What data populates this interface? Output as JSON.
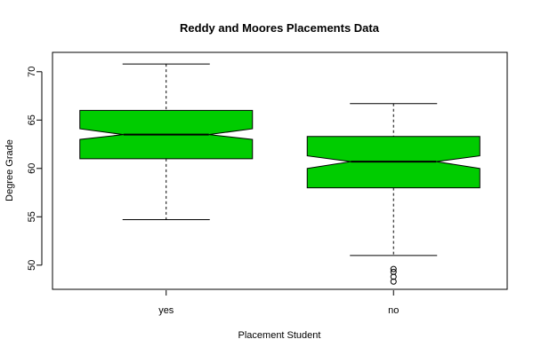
{
  "chart_data": {
    "type": "boxplot",
    "title": "Reddy and Moores Placements Data",
    "xlabel": "Placement Student",
    "ylabel": "Degree Grade",
    "categories": [
      "yes",
      "no"
    ],
    "ylim": [
      47.5,
      72.0
    ],
    "yticks": [
      50,
      55,
      60,
      65,
      70
    ],
    "notched": true,
    "box_color": "#00cc00",
    "grid": false,
    "series": [
      {
        "category": "yes",
        "whisker_low": 54.7,
        "q1": 61.0,
        "median": 63.5,
        "q3": 66.0,
        "whisker_high": 70.8,
        "notch_low": 63.0,
        "notch_high": 64.1,
        "outliers": []
      },
      {
        "category": "no",
        "whisker_low": 51.0,
        "q1": 58.0,
        "median": 60.7,
        "q3": 63.3,
        "whisker_high": 66.7,
        "notch_low": 60.0,
        "notch_high": 61.3,
        "outliers": [
          49.6,
          49.3,
          48.8,
          48.3
        ]
      }
    ]
  }
}
